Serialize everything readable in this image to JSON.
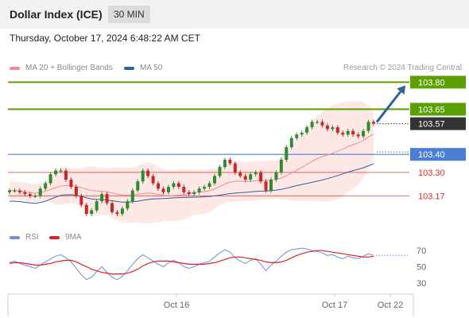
{
  "header": {
    "title": "Dollar Index (ICE)",
    "timeframe": "30 MIN"
  },
  "timestamp": "Thursday, October 17, 2024 6:48:22 AM CET",
  "legend": {
    "ma20_label": "MA 20 + Bollinger Bands",
    "ma50_label": "MA 50",
    "credit": "Research © 2024 Trading Central"
  },
  "rsi_legend": {
    "rsi_label": "RSI",
    "ma9_label": "9MA"
  },
  "colors": {
    "ma20": "#f08c8c",
    "bollinger_fill": "#fde0de",
    "ma50": "#2f5f9e",
    "resistance": "#5aa000",
    "support": "#4a7fd4",
    "support_minor": "#d52a2a",
    "current_price": "#333333",
    "arrow": "#2f5f9e",
    "candle_up": "#2e8b2e",
    "candle_down": "#c62828",
    "rsi": "#6f8fd8",
    "rsi_ma": "#e02020"
  },
  "levels": {
    "r2": "103.80",
    "r1": "103.65",
    "current": "103.57",
    "s1": "103.40",
    "s2": "103.30",
    "s3": "103.17"
  },
  "xaxis": {
    "labels": [
      "Oct 16",
      "Oct 17",
      "Oct 22"
    ]
  },
  "rsi_axis": {
    "labels": [
      "70",
      "50",
      "30"
    ]
  },
  "chart_data": {
    "type": "candlestick",
    "price_range": [
      103.0,
      103.85
    ],
    "levels": [
      103.8,
      103.65,
      103.57,
      103.4,
      103.3,
      103.17
    ],
    "forecast_arrow_to": 103.8,
    "close": [
      103.2,
      103.2,
      103.19,
      103.18,
      103.17,
      103.17,
      103.21,
      103.24,
      103.29,
      103.31,
      103.31,
      103.26,
      103.22,
      103.17,
      103.12,
      103.07,
      103.09,
      103.14,
      103.18,
      103.13,
      103.08,
      103.07,
      103.1,
      103.14,
      103.2,
      103.25,
      103.31,
      103.28,
      103.24,
      103.21,
      103.19,
      103.22,
      103.24,
      103.22,
      103.19,
      103.18,
      103.19,
      103.21,
      103.22,
      103.24,
      103.28,
      103.33,
      103.37,
      103.35,
      103.3,
      103.28,
      103.26,
      103.29,
      103.3,
      103.25,
      103.2,
      103.26,
      103.3,
      103.37,
      103.44,
      103.49,
      103.51,
      103.52,
      103.55,
      103.58,
      103.58,
      103.56,
      103.54,
      103.55,
      103.52,
      103.51,
      103.53,
      103.51,
      103.5,
      103.53,
      103.58,
      103.57
    ],
    "rsi": {
      "values": [
        55,
        57,
        54,
        52,
        50,
        48,
        52,
        56,
        60,
        63,
        65,
        61,
        56,
        48,
        40,
        34,
        37,
        44,
        50,
        43,
        37,
        34,
        38,
        45,
        53,
        60,
        65,
        61,
        57,
        53,
        50,
        55,
        58,
        55,
        50,
        48,
        50,
        53,
        55,
        57,
        62,
        67,
        71,
        68,
        61,
        57,
        54,
        58,
        60,
        53,
        45,
        52,
        57,
        63,
        68,
        71,
        72,
        73,
        72,
        70,
        69,
        67,
        64,
        65,
        62,
        60,
        63,
        61,
        60,
        63,
        66,
        64
      ],
      "ma9": [
        54,
        55,
        55,
        54,
        53,
        52,
        52,
        53,
        54,
        56,
        57,
        58,
        58,
        56,
        53,
        50,
        47,
        45,
        43,
        42,
        41,
        41,
        41,
        42,
        44,
        47,
        51,
        54,
        56,
        57,
        57,
        57,
        56,
        55,
        54,
        53,
        53,
        53,
        53,
        54,
        55,
        57,
        59,
        61,
        62,
        62,
        61,
        60,
        59,
        58,
        56,
        55,
        55,
        56,
        58,
        61,
        64,
        66,
        68,
        69,
        70,
        70,
        69,
        68,
        67,
        66,
        65,
        64,
        63,
        62,
        62,
        63
      ],
      "levels": [
        70,
        50,
        30
      ]
    }
  }
}
